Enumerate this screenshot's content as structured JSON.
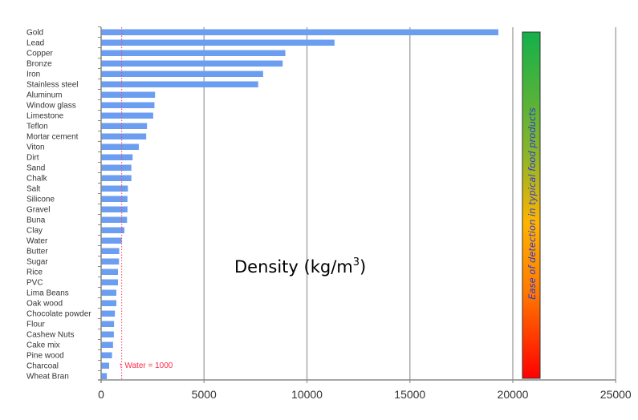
{
  "chart_data": {
    "type": "bar",
    "orientation": "horizontal",
    "categories": [
      "Gold",
      "Lead",
      "Copper",
      "Bronze",
      "Iron",
      "Stainless steel",
      "Aluminum",
      "Window glass",
      "Limestone",
      "Teflon",
      "Mortar cement",
      "Viton",
      "Dirt",
      "Sand",
      "Chalk",
      "Salt",
      "Silicone",
      "Gravel",
      "Buna",
      "Clay",
      "Water",
      "Butter",
      "Sugar",
      "Rice",
      "PVC",
      "Lima Beans",
      "Oak wood",
      "Chocolate powder",
      "Flour",
      "Cashew Nuts",
      "Cake mix",
      "Pine wood",
      "Charcoal",
      "Wheat Bran"
    ],
    "values": [
      19300,
      11340,
      8950,
      8820,
      7870,
      7630,
      2620,
      2590,
      2530,
      2230,
      2190,
      1830,
      1530,
      1470,
      1470,
      1300,
      1280,
      1280,
      1260,
      1130,
      1000,
      880,
      870,
      820,
      820,
      740,
      740,
      670,
      630,
      620,
      580,
      530,
      390,
      280
    ],
    "xlabel": "Density (kg/m",
    "xlabel_sup": "3",
    "xlabel_end": ")",
    "xlim": [
      0,
      25000
    ],
    "xticks": [
      "0",
      "5000",
      "10000",
      "15000",
      "20000",
      "25000"
    ],
    "grid": "vertical",
    "bar_color": "#6b9ef0",
    "reference_line": {
      "value": 1000,
      "label": "↑ Water = 1000",
      "color": "#ff2a4a"
    },
    "colorbar": {
      "label": "Ease of detection in typical food products",
      "colors": [
        "#13b04b",
        "#c8b810",
        "#ffb400",
        "#ff7a00",
        "#ff0000"
      ]
    }
  }
}
